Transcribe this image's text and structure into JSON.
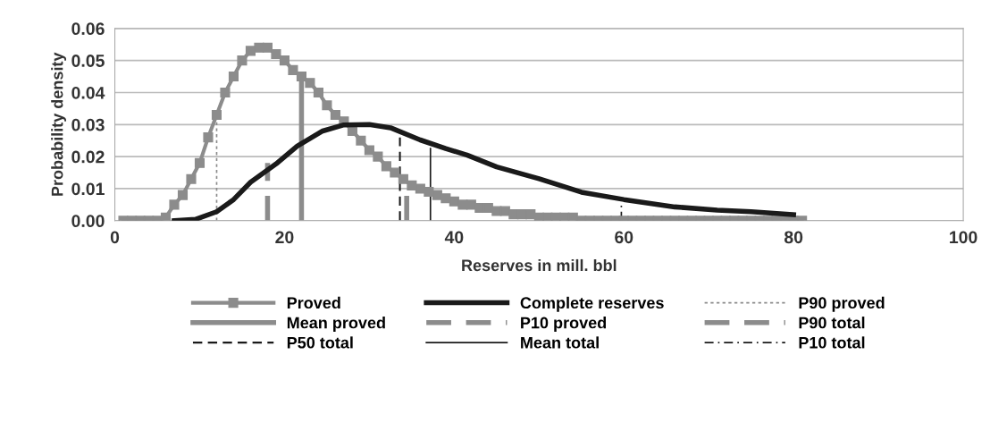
{
  "chart_data": {
    "type": "line",
    "xlabel": "Reserves in mill. bbl",
    "ylabel": "Probability density",
    "xlim": [
      0,
      100
    ],
    "xticks": [
      0,
      20,
      40,
      60,
      80,
      100
    ],
    "ylim": [
      0,
      0.06
    ],
    "yticks": [
      {
        "value": 0,
        "label": "0.00"
      },
      {
        "value": 0.01,
        "label": "0.01"
      },
      {
        "value": 0.02,
        "label": "0.02"
      },
      {
        "value": 0.03,
        "label": "0.03"
      },
      {
        "value": 0.04,
        "label": "0.04"
      },
      {
        "value": 0.05,
        "label": "0.05"
      },
      {
        "value": 0.06,
        "label": "0.06"
      }
    ],
    "grid": "y",
    "legend": "bottom",
    "series": [
      {
        "name": "Proved",
        "color": "#8c8c8c",
        "marker": "square",
        "line_style": "solid",
        "x": [
          1,
          2,
          3,
          4,
          5,
          6,
          7,
          8,
          9,
          10,
          11,
          12,
          13,
          14,
          15,
          16,
          17,
          18,
          19,
          20,
          21,
          22,
          23,
          24,
          25,
          26,
          27,
          28,
          29,
          30,
          31,
          32,
          33,
          34,
          35,
          36,
          37,
          38,
          39,
          40,
          41,
          42,
          43,
          44,
          45,
          46,
          47,
          48,
          49,
          50,
          51,
          52,
          53,
          54,
          55,
          56,
          57,
          58,
          59,
          60,
          61,
          62,
          63,
          64,
          65,
          66,
          67,
          68,
          69,
          70,
          71,
          72,
          73,
          74,
          75,
          76,
          77,
          78,
          79,
          80,
          81
        ],
        "values": [
          0,
          0,
          0,
          0,
          0,
          0.001,
          0.005,
          0.008,
          0.013,
          0.018,
          0.026,
          0.033,
          0.04,
          0.045,
          0.05,
          0.053,
          0.054,
          0.054,
          0.052,
          0.05,
          0.047,
          0.045,
          0.043,
          0.04,
          0.036,
          0.033,
          0.031,
          0.028,
          0.025,
          0.022,
          0.02,
          0.017,
          0.015,
          0.013,
          0.011,
          0.01,
          0.009,
          0.008,
          0.007,
          0.006,
          0.005,
          0.005,
          0.004,
          0.004,
          0.003,
          0.003,
          0.002,
          0.002,
          0.002,
          0.001,
          0.001,
          0.001,
          0.001,
          0.001,
          0,
          0,
          0,
          0,
          0,
          0,
          0,
          0,
          0,
          0,
          0,
          0,
          0,
          0,
          0,
          0,
          0,
          0,
          0,
          0,
          0,
          0,
          0,
          0,
          0,
          0,
          0
        ]
      },
      {
        "name": "Complete reserves",
        "color": "#1a1a1a",
        "marker": "none",
        "line_style": "solid",
        "x": [
          7,
          9.5,
          12,
          14,
          16,
          19,
          21.5,
          24.5,
          27,
          30,
          32.5,
          36,
          39,
          41.5,
          45,
          50,
          55,
          60,
          66,
          71,
          75,
          80
        ],
        "values": [
          0,
          0.0004,
          0.0028,
          0.0066,
          0.012,
          0.0177,
          0.0233,
          0.028,
          0.0299,
          0.03,
          0.029,
          0.0252,
          0.0225,
          0.0205,
          0.0168,
          0.0131,
          0.0089,
          0.0066,
          0.0043,
          0.0033,
          0.0028,
          0.0019
        ]
      },
      {
        "name": "P90 proved",
        "color": "#8c8c8c",
        "marker": "none",
        "line_style": "dotted",
        "x": [
          12,
          12
        ],
        "values": [
          0,
          0.033
        ]
      },
      {
        "name": "Mean proved",
        "color": "#8c8c8c",
        "marker": "none",
        "line_style": "solid",
        "x": [
          22,
          22
        ],
        "values": [
          0,
          0.045
        ]
      },
      {
        "name": "P10 proved",
        "color": "#8c8c8c",
        "marker": "none",
        "line_style": "dashed",
        "x": [
          34.4,
          34.4
        ],
        "values": [
          0,
          0.011
        ]
      },
      {
        "name": "P90 total",
        "color": "#8c8c8c",
        "marker": "none",
        "line_style": "dashed",
        "x": [
          18,
          18
        ],
        "values": [
          0,
          0.018
        ]
      },
      {
        "name": "P50 total",
        "color": "#1a1a1a",
        "marker": "none",
        "line_style": "dashed",
        "x": [
          33.6,
          33.6
        ],
        "values": [
          0,
          0.026
        ]
      },
      {
        "name": "Mean total",
        "color": "#1a1a1a",
        "marker": "none",
        "line_style": "solid",
        "x": [
          37.2,
          37.2
        ],
        "values": [
          0,
          0.0225
        ]
      },
      {
        "name": "P10 total",
        "color": "#1a1a1a",
        "marker": "none",
        "line_style": "dashdot",
        "x": [
          59.7,
          59.7
        ],
        "values": [
          0,
          0.0053
        ]
      }
    ]
  }
}
